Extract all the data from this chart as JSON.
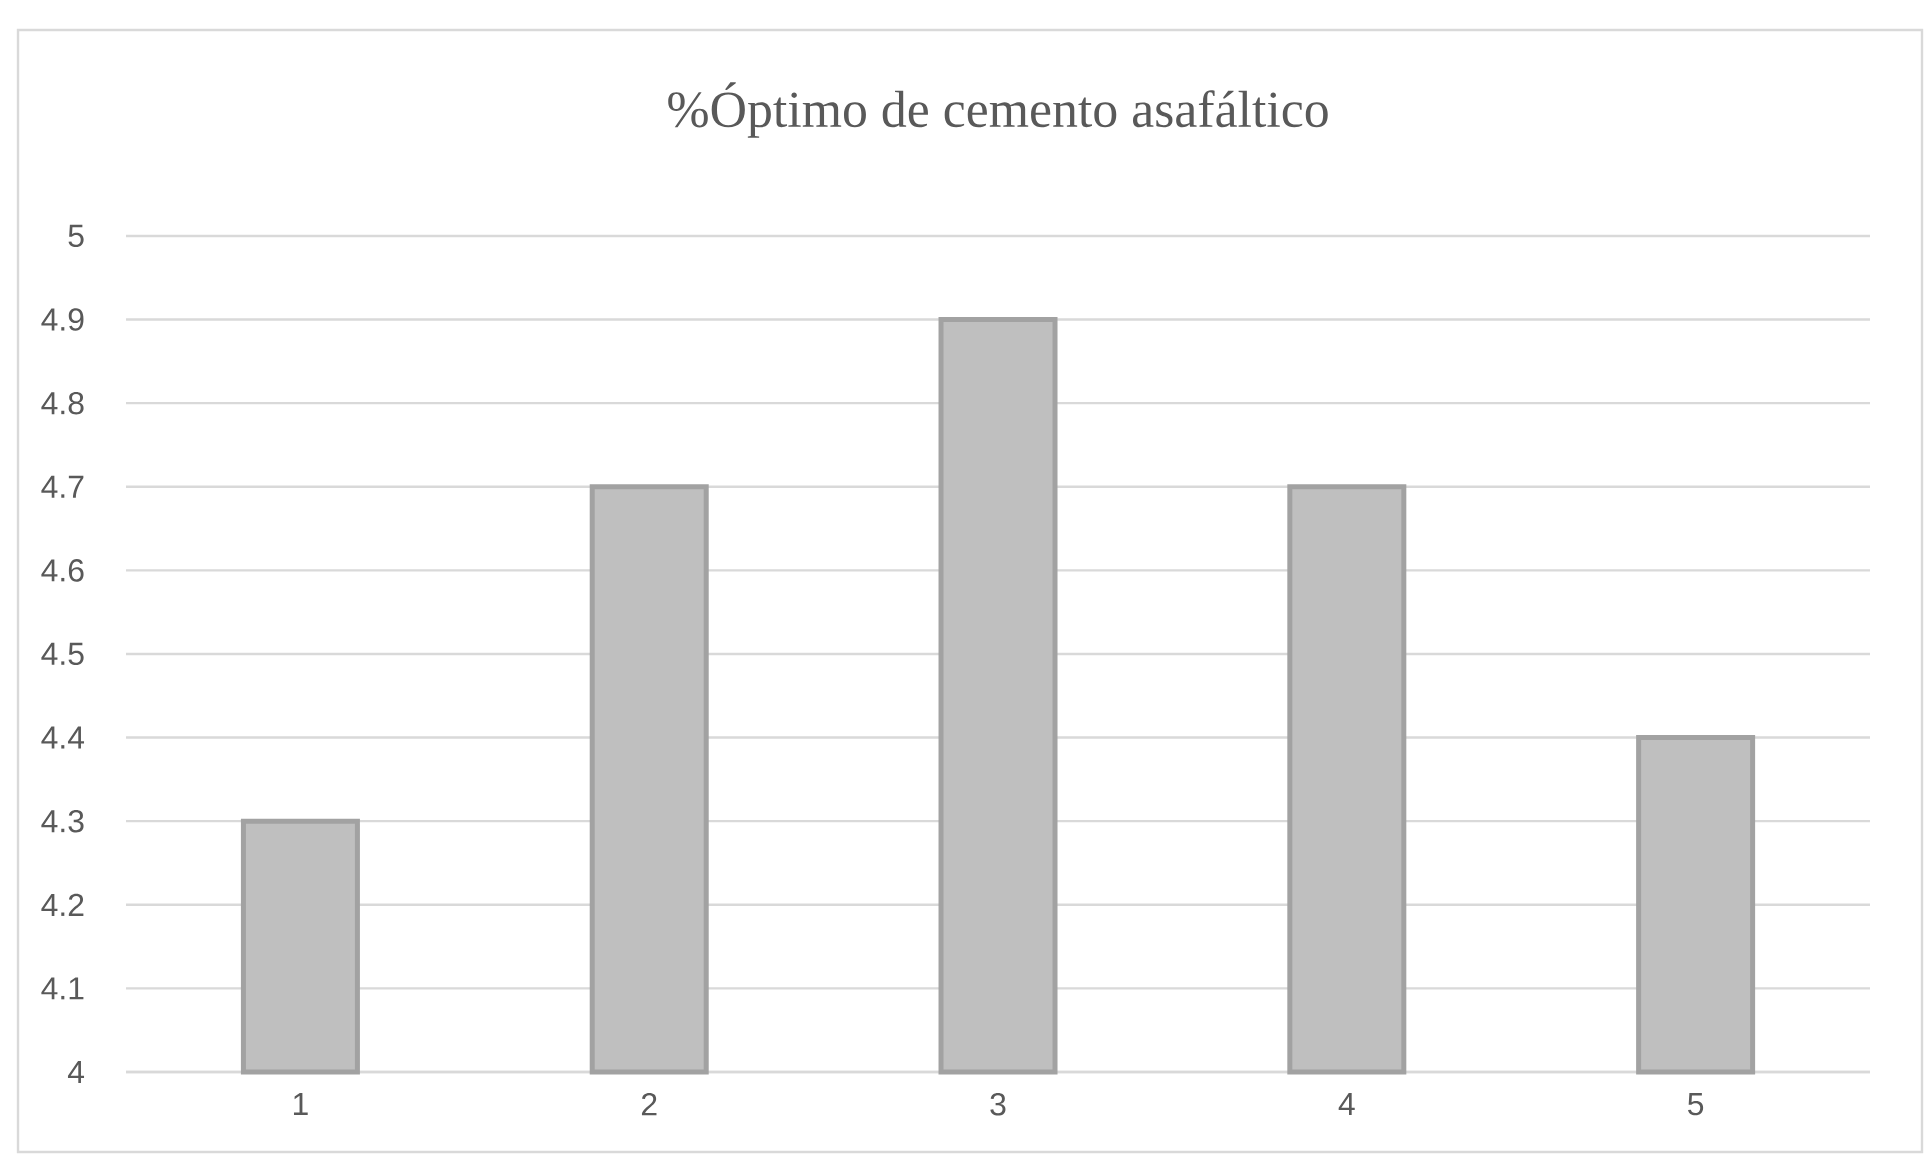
{
  "chart_data": {
    "type": "bar",
    "title": "%Óptimo de cemento asafáltico",
    "categories": [
      "1",
      "2",
      "3",
      "4",
      "5"
    ],
    "values": [
      4.3,
      4.7,
      4.9,
      4.7,
      4.4
    ],
    "color": "#bfbfbf",
    "ylim": [
      4,
      5
    ],
    "yticks": [
      4,
      4.1,
      4.2,
      4.3,
      4.4,
      4.5,
      4.6,
      4.7,
      4.8,
      4.9,
      5
    ],
    "grid": "y"
  }
}
